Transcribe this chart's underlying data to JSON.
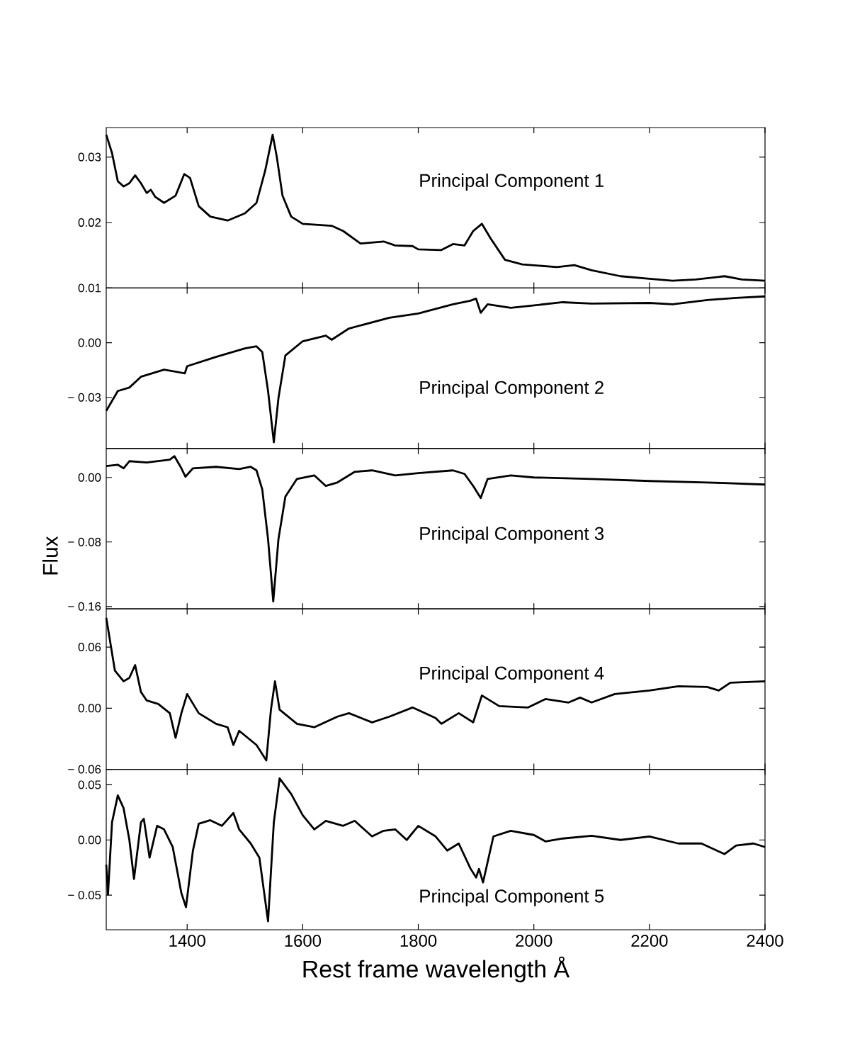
{
  "chart_data": [
    {
      "type": "line",
      "color": "#000000",
      "annotations": [
        "Principal Component 1"
      ],
      "tick_labels": "y",
      "xlim": [
        1260,
        2400
      ],
      "xticks": [
        1400,
        1600,
        1800,
        2000,
        2200,
        2400
      ],
      "ylim": [
        0.01,
        0.0345
      ],
      "yticks": [
        0.01,
        0.02,
        0.03
      ],
      "x": [
        1260,
        1270,
        1280,
        1290,
        1300,
        1310,
        1320,
        1330,
        1337,
        1345,
        1360,
        1380,
        1395,
        1405,
        1420,
        1440,
        1470,
        1500,
        1520,
        1535,
        1548,
        1555,
        1565,
        1580,
        1600,
        1650,
        1670,
        1700,
        1740,
        1760,
        1790,
        1800,
        1840,
        1860,
        1880,
        1895,
        1910,
        1925,
        1950,
        1980,
        2040,
        2070,
        2100,
        2150,
        2200,
        2240,
        2280,
        2330,
        2360,
        2400
      ],
      "values": [
        0.0334,
        0.0306,
        0.0263,
        0.0255,
        0.026,
        0.0272,
        0.026,
        0.0245,
        0.025,
        0.0239,
        0.023,
        0.0241,
        0.0274,
        0.0268,
        0.0225,
        0.0209,
        0.0203,
        0.0214,
        0.023,
        0.0279,
        0.0334,
        0.0301,
        0.0241,
        0.0209,
        0.0198,
        0.0195,
        0.0187,
        0.0168,
        0.0171,
        0.0165,
        0.0164,
        0.0159,
        0.0158,
        0.0167,
        0.0165,
        0.0187,
        0.0198,
        0.0176,
        0.0143,
        0.0136,
        0.0132,
        0.0135,
        0.0127,
        0.0118,
        0.0114,
        0.0111,
        0.0113,
        0.0118,
        0.0113,
        0.0111
      ]
    },
    {
      "type": "line",
      "color": "#000000",
      "annotations": [
        "Principal Component 2"
      ],
      "tick_labels": "y",
      "xlim": [
        1260,
        2400
      ],
      "xticks": [
        1400,
        1600,
        1800,
        2000,
        2200,
        2400
      ],
      "ylim": [
        -0.058,
        0.03
      ],
      "yticks": [
        {
          "value": -0.03,
          "label": "− 0.03"
        },
        {
          "value": 0,
          "label": "0.00"
        }
      ],
      "x": [
        1260,
        1280,
        1300,
        1320,
        1360,
        1396,
        1400,
        1450,
        1500,
        1520,
        1530,
        1540,
        1550,
        1558,
        1570,
        1600,
        1640,
        1650,
        1680,
        1750,
        1800,
        1860,
        1890,
        1900,
        1908,
        1920,
        1960,
        2050,
        2100,
        2200,
        2240,
        2300,
        2350,
        2400
      ],
      "values": [
        -0.0374,
        -0.0265,
        -0.0246,
        -0.0187,
        -0.0148,
        -0.0168,
        -0.0129,
        -0.0078,
        -0.0031,
        -0.002,
        -0.0051,
        -0.0265,
        -0.0546,
        -0.0304,
        -0.007,
        0.0008,
        0.0039,
        0.0016,
        0.0078,
        0.0137,
        0.016,
        0.0211,
        0.023,
        0.0242,
        0.0164,
        0.0211,
        0.0191,
        0.0222,
        0.0215,
        0.0218,
        0.0211,
        0.0234,
        0.0246,
        0.0254
      ]
    },
    {
      "type": "line",
      "color": "#000000",
      "annotations": [
        "Principal Component 3"
      ],
      "tick_labels": "y",
      "ylabel": "Flux",
      "xlim": [
        1260,
        2400
      ],
      "xticks": [
        1400,
        1600,
        1800,
        2000,
        2200,
        2400
      ],
      "ylim": [
        -0.163,
        0.036
      ],
      "yticks": [
        {
          "value": -0.16,
          "label": "− 0.16"
        },
        {
          "value": -0.08,
          "label": "− 0.08"
        },
        {
          "value": 0,
          "label": "0.00"
        }
      ],
      "x": [
        1260,
        1280,
        1290,
        1300,
        1330,
        1370,
        1378,
        1390,
        1397,
        1410,
        1450,
        1490,
        1510,
        1520,
        1530,
        1540,
        1549,
        1558,
        1570,
        1590,
        1620,
        1640,
        1660,
        1690,
        1720,
        1760,
        1800,
        1860,
        1880,
        1895,
        1908,
        1920,
        1960,
        2000,
        2100,
        2200,
        2300,
        2400
      ],
      "values": [
        0.0141,
        0.0158,
        0.0114,
        0.0202,
        0.0185,
        0.022,
        0.0264,
        0.0114,
        0.0009,
        0.0114,
        0.0132,
        0.0105,
        0.0132,
        0.0088,
        -0.0149,
        -0.0765,
        -0.1538,
        -0.0765,
        -0.0237,
        -0.0018,
        0.0026,
        -0.0105,
        -0.0062,
        0.007,
        0.0088,
        0.0026,
        0.0053,
        0.0088,
        0.0044,
        -0.0105,
        -0.0255,
        -0.0018,
        0.0026,
        0.0,
        -0.0018,
        -0.0044,
        -0.0062,
        -0.0088
      ]
    },
    {
      "type": "line",
      "color": "#000000",
      "annotations": [
        "Principal Component 4"
      ],
      "tick_labels": "y",
      "xlim": [
        1260,
        2400
      ],
      "xticks": [
        1400,
        1600,
        1800,
        2000,
        2200,
        2400
      ],
      "ylim": [
        -0.06,
        0.0975
      ],
      "yticks": [
        {
          "value": -0.06,
          "label": "− 0.06"
        },
        {
          "value": 0,
          "label": "0.00"
        },
        0.06
      ],
      "x": [
        1260,
        1265,
        1275,
        1290,
        1300,
        1310,
        1320,
        1330,
        1350,
        1370,
        1380,
        1390,
        1400,
        1420,
        1450,
        1470,
        1480,
        1490,
        1520,
        1537,
        1545,
        1552,
        1560,
        1590,
        1620,
        1660,
        1680,
        1720,
        1750,
        1790,
        1830,
        1840,
        1870,
        1895,
        1910,
        1940,
        1990,
        2020,
        2060,
        2080,
        2100,
        2140,
        2200,
        2250,
        2300,
        2320,
        2340,
        2400
      ],
      "values": [
        0.0888,
        0.0715,
        0.0368,
        0.0264,
        0.0298,
        0.0423,
        0.016,
        0.0076,
        0.0042,
        -0.0049,
        -0.0291,
        -0.0049,
        0.0139,
        -0.0049,
        -0.0153,
        -0.0187,
        -0.0361,
        -0.0222,
        -0.0361,
        -0.0513,
        -0.0014,
        0.0264,
        -0.0014,
        -0.0153,
        -0.0187,
        -0.0083,
        -0.0049,
        -0.0139,
        -0.0083,
        0.0007,
        -0.0097,
        -0.0153,
        -0.0049,
        -0.0139,
        0.0125,
        0.0021,
        0.0007,
        0.009,
        0.0056,
        0.0104,
        0.0056,
        0.0139,
        0.0174,
        0.0215,
        0.0208,
        0.0174,
        0.025,
        0.0264
      ]
    },
    {
      "type": "line",
      "color": "#000000",
      "annotations": [
        "Principal Component 5"
      ],
      "xlabel": "Rest frame wavelength Å",
      "xlim": [
        1260,
        2400
      ],
      "xticks": [
        1400,
        1600,
        1800,
        2000,
        2200,
        2400
      ],
      "ylim": [
        -0.0814,
        0.064
      ],
      "yticks": [
        {
          "value": -0.05,
          "label": "− 0.05"
        },
        {
          "value": 0,
          "label": "0.00"
        },
        0.05
      ],
      "x": [
        1260,
        1263,
        1270,
        1280,
        1290,
        1300,
        1308,
        1320,
        1325,
        1335,
        1348,
        1360,
        1375,
        1390,
        1398,
        1410,
        1420,
        1440,
        1460,
        1480,
        1490,
        1510,
        1525,
        1540,
        1550,
        1560,
        1580,
        1600,
        1620,
        1640,
        1670,
        1690,
        1720,
        1740,
        1760,
        1780,
        1800,
        1830,
        1850,
        1870,
        1890,
        1900,
        1905,
        1912,
        1930,
        1960,
        2000,
        2020,
        2050,
        2100,
        2150,
        2200,
        2250,
        2290,
        2330,
        2350,
        2380,
        2400
      ],
      "values": [
        -0.0224,
        -0.0494,
        0.016,
        0.0404,
        0.0288,
        0.0,
        -0.0353,
        0.016,
        0.0192,
        -0.016,
        0.0128,
        0.0096,
        -0.0064,
        -0.0481,
        -0.0609,
        -0.0096,
        0.0147,
        0.0179,
        0.0128,
        0.0244,
        0.0096,
        -0.0032,
        -0.016,
        -0.0737,
        0.016,
        0.0558,
        0.0417,
        0.0224,
        0.0096,
        0.0173,
        0.0128,
        0.0173,
        0.0032,
        0.0083,
        0.0096,
        0.0,
        0.0128,
        0.0032,
        -0.0096,
        -0.0032,
        -0.0256,
        -0.034,
        -0.0263,
        -0.0385,
        0.0032,
        0.0083,
        0.0045,
        -0.0013,
        0.0013,
        0.0038,
        0.0,
        0.0032,
        -0.0032,
        -0.0032,
        -0.0128,
        -0.0051,
        -0.0032,
        -0.0064
      ]
    }
  ]
}
